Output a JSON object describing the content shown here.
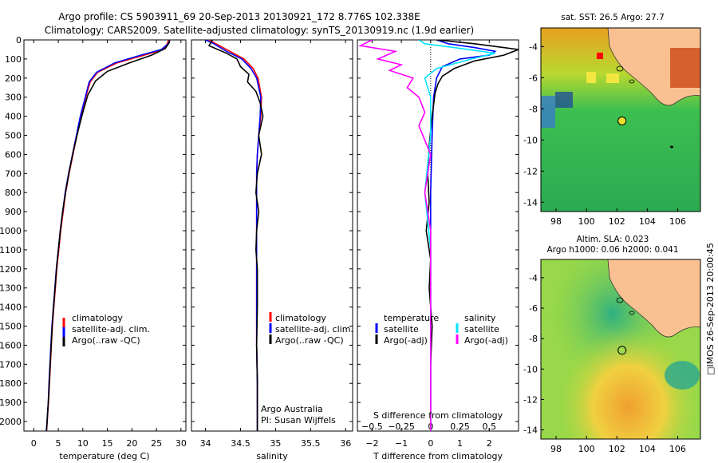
{
  "header": {
    "line1": "Argo profile: CS 5903911_69 20-Sep-2013 20130921_172 8.776S 102.338E",
    "line2": "Climatology: CARS2009. Satellite-adjusted climatology: synTS_20130919.nc (1.9d earlier)"
  },
  "colors": {
    "climatology": "#ff0000",
    "satellite": "#0000ff",
    "argo": "#000000",
    "sat_salinity": "#00e5ff",
    "argo_salinity": "#ff00ff"
  },
  "chart_data": [
    {
      "type": "line",
      "id": "temperature",
      "xlabel": "temperature (deg C)",
      "xlim": [
        -2,
        31
      ],
      "ylim": [
        2050,
        0
      ],
      "xticks": [
        0,
        5,
        10,
        15,
        20,
        25,
        30
      ],
      "yticks": [
        0,
        100,
        200,
        300,
        400,
        500,
        600,
        700,
        800,
        900,
        1000,
        1100,
        1200,
        1300,
        1400,
        1500,
        1600,
        1700,
        1800,
        1900,
        2000
      ],
      "legend": [
        "climatology",
        "satellite-adj. clim.",
        "Argo(..raw -QC)"
      ],
      "series": [
        {
          "name": "climatology",
          "color": "#ff0000",
          "x": [
            27.5,
            27.2,
            26.4,
            22.5,
            17,
            13,
            11.5,
            10.6,
            9.6,
            8.8,
            8.0,
            7.2,
            6.5,
            6.0,
            5.5,
            5.1,
            4.7,
            4.4,
            4.1,
            3.8,
            3.6,
            3.4,
            3.2,
            3.0,
            2.85,
            2.7,
            2.6
          ],
          "y": [
            0,
            20,
            50,
            80,
            120,
            170,
            220,
            300,
            400,
            500,
            600,
            700,
            800,
            900,
            1000,
            1100,
            1200,
            1300,
            1400,
            1500,
            1600,
            1700,
            1800,
            1900,
            1960,
            2020,
            2050
          ]
        },
        {
          "name": "satellite-adj. clim.",
          "color": "#0000ff",
          "x": [
            27.7,
            27.4,
            26.0,
            21.8,
            16.5,
            12.8,
            11.3,
            10.5,
            9.5,
            8.7,
            7.9,
            7.1,
            6.4,
            5.9,
            5.4,
            5.0,
            4.6,
            4.3,
            4.0,
            3.7,
            3.5,
            3.3,
            3.1,
            2.95,
            2.8,
            2.65,
            2.55
          ],
          "y": [
            0,
            20,
            50,
            80,
            120,
            170,
            220,
            300,
            400,
            500,
            600,
            700,
            800,
            900,
            1000,
            1100,
            1200,
            1300,
            1400,
            1500,
            1600,
            1700,
            1800,
            1900,
            1960,
            2020,
            2050
          ]
        },
        {
          "name": "Argo(..raw -QC)",
          "color": "#000000",
          "x": [
            27.7,
            27.6,
            26.8,
            24.0,
            19.5,
            15.0,
            12.6,
            11.0,
            10.0,
            9.0,
            8.1,
            7.3,
            6.6,
            6.0,
            5.5,
            5.1,
            4.7,
            4.4,
            4.1,
            3.8,
            3.6,
            3.4,
            3.2,
            3.0,
            2.85,
            2.7,
            2.6
          ],
          "y": [
            0,
            15,
            45,
            80,
            120,
            165,
            215,
            290,
            380,
            480,
            580,
            680,
            780,
            880,
            980,
            1080,
            1180,
            1280,
            1380,
            1480,
            1580,
            1680,
            1780,
            1880,
            1950,
            2010,
            2050
          ]
        }
      ]
    },
    {
      "type": "line",
      "id": "salinity",
      "xlabel": "salinity",
      "xlim": [
        33.8,
        36.1
      ],
      "ylim": [
        2050,
        0
      ],
      "xticks": [
        34,
        34.5,
        35,
        35.5,
        36
      ],
      "xticklabels": [
        "34",
        "34.5",
        "35",
        "35.5",
        "36"
      ],
      "legend": [
        "climatology",
        "satellite-adj. clim.",
        "Argo(..raw -QC)"
      ],
      "annotation": [
        "Argo Australia",
        "PI: Susan Wijffels"
      ],
      "series": [
        {
          "name": "climatology",
          "color": "#ff0000",
          "x": [
            34.05,
            34.15,
            34.35,
            34.55,
            34.68,
            34.75,
            34.8,
            34.79,
            34.76,
            34.74,
            34.73,
            34.73,
            34.73,
            34.73,
            34.73,
            34.73,
            34.73,
            34.74,
            34.74,
            34.74,
            34.74
          ],
          "y": [
            0,
            20,
            60,
            100,
            150,
            200,
            300,
            400,
            500,
            600,
            700,
            800,
            900,
            1000,
            1200,
            1400,
            1600,
            1800,
            1900,
            2000,
            2050
          ]
        },
        {
          "name": "satellite-adj. clim.",
          "color": "#0000ff",
          "x": [
            34.0,
            34.12,
            34.3,
            34.52,
            34.65,
            34.73,
            34.79,
            34.78,
            34.76,
            34.74,
            34.73,
            34.73,
            34.73,
            34.73,
            34.73,
            34.73,
            34.73,
            34.74,
            34.74,
            34.74,
            34.74
          ],
          "y": [
            0,
            20,
            60,
            100,
            150,
            200,
            300,
            400,
            500,
            600,
            700,
            800,
            900,
            1000,
            1200,
            1400,
            1600,
            1800,
            1900,
            2000,
            2050
          ]
        },
        {
          "name": "Argo(..raw -QC)",
          "color": "#000000",
          "x": [
            34.1,
            34.05,
            34.3,
            34.45,
            34.5,
            34.62,
            34.6,
            34.72,
            34.78,
            34.82,
            34.76,
            34.8,
            34.74,
            34.72,
            34.76,
            34.73,
            34.72,
            34.74,
            34.74,
            34.73,
            34.74,
            34.74
          ],
          "y": [
            0,
            30,
            70,
            100,
            140,
            180,
            220,
            270,
            330,
            400,
            500,
            600,
            700,
            800,
            900,
            1000,
            1100,
            1200,
            1400,
            1600,
            1800,
            2050
          ]
        }
      ]
    },
    {
      "type": "line",
      "id": "differences",
      "xlabel": "T difference from climatology",
      "xlabel_top": "S difference from climatology",
      "xlim": [
        -2.5,
        3.0
      ],
      "ylim": [
        2050,
        0
      ],
      "xticks": [
        -2,
        -1,
        0,
        1,
        2
      ],
      "xticklabels": [
        "−2",
        "−1",
        "0",
        "1",
        "2"
      ],
      "xticks_top": [
        -0.5,
        -0.25,
        0,
        0.25,
        0.5
      ],
      "xticklabels_top": [
        "−0.5",
        "−0.25",
        "0",
        "0.25",
        "0.5"
      ],
      "legend_temperature": {
        "title": "temperature",
        "items": [
          "satellite",
          "Argo(-adj)"
        ]
      },
      "legend_salinity": {
        "title": "salinity",
        "items": [
          "satellite",
          "Argo(-adj)"
        ]
      },
      "series": [
        {
          "name": "T satellite",
          "color": "#0000ff",
          "x": [
            0.2,
            0.6,
            1.5,
            2.2,
            2.0,
            1.0,
            0.4,
            0.2,
            0.1,
            0.05,
            0.0,
            0.0,
            0.0,
            0.0,
            0.0,
            0.0
          ],
          "y": [
            0,
            20,
            40,
            60,
            80,
            100,
            140,
            200,
            300,
            500,
            800,
            1100,
            1400,
            1700,
            2000,
            2050
          ]
        },
        {
          "name": "T Argo(-adj)",
          "color": "#000000",
          "x": [
            0.2,
            1.5,
            3.0,
            2.5,
            1.5,
            0.8,
            0.4,
            0.25,
            0.15,
            0.05,
            -0.05,
            -0.1,
            -0.05,
            -0.15,
            0.0,
            -0.05,
            0.05,
            0.0,
            0.0,
            0.0
          ],
          "y": [
            0,
            20,
            50,
            80,
            110,
            150,
            190,
            230,
            280,
            400,
            550,
            700,
            850,
            1000,
            1150,
            1300,
            1500,
            1700,
            1900,
            2050
          ]
        },
        {
          "name": "S satellite",
          "color": "#00e5ff",
          "x": [
            -0.1,
            -0.05,
            0.2,
            0.55,
            0.35,
            0.05,
            -0.05,
            0.0,
            0.0,
            -0.05,
            0.0,
            0.0,
            0.0,
            0.0
          ],
          "y": [
            0,
            20,
            40,
            70,
            100,
            150,
            200,
            300,
            500,
            800,
            1100,
            1400,
            1700,
            2050
          ]
        },
        {
          "name": "S Argo(-adj)",
          "color": "#ff00ff",
          "x": [
            -0.5,
            -0.6,
            -0.3,
            -0.45,
            -0.25,
            -0.35,
            -0.15,
            -0.2,
            -0.1,
            -0.05,
            -0.1,
            0.0,
            -0.05,
            0.0,
            0.0,
            0.0
          ],
          "y": [
            0,
            30,
            60,
            100,
            130,
            160,
            200,
            250,
            300,
            380,
            450,
            600,
            800,
            1000,
            1300,
            2050
          ]
        }
      ]
    }
  ],
  "sst_map": {
    "title": "sat. SST: 26.5  Argo: 27.7",
    "xticklabels": [
      "98",
      "100",
      "102",
      "104",
      "106"
    ],
    "yticklabels": [
      "-4",
      "-6",
      "-8",
      "-10",
      "-12",
      "-14"
    ],
    "argo_lon": 102.338,
    "argo_lat": -8.776
  },
  "sla_map": {
    "title_line1": "Altim. SLA: 0.023",
    "title_line2": "Argo h1000: 0.06 h2000: 0.041",
    "xticklabels": [
      "98",
      "100",
      "102",
      "104",
      "106"
    ],
    "yticklabels": [
      "-4",
      "-6",
      "-8",
      "-10",
      "-12",
      "-14"
    ],
    "argo_lon": 102.338,
    "argo_lat": -8.776
  },
  "side_label": "□IMOS 26-Sep-2013 20:00:45"
}
